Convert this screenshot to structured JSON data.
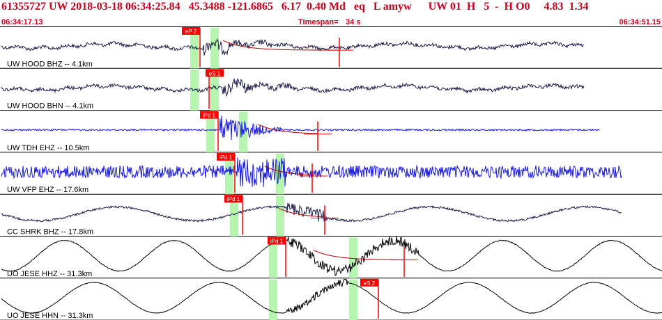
{
  "header": {
    "title": "61355727 UW 2018-03-18 06:34:25.84   45.3488 -121.6865   6.17  0.40 Md   eq   L amyw      UW 01  H   5  -  H O0     4.83  1.34",
    "start_time": "06:34:17.13",
    "end_time": "06:34:51.15",
    "timespan_label": "Timespan=",
    "timespan_value": "34 s"
  },
  "colors": {
    "header_text": "#c8001e",
    "pick_box": "#ff0000",
    "green_band": "#b6f5b0",
    "trace_dark": "#1a1a4a",
    "trace_blue": "#1818e0",
    "trace_black": "#000000",
    "coda_line": "#b00000"
  },
  "traces": [
    {
      "label": "UW HOOD BHZ -- 4.1km",
      "pick": "eP 2",
      "color": "trace_dark"
    },
    {
      "label": "UW HOOD BHN -- 4.1km",
      "pick": "eS 1",
      "color": "trace_dark"
    },
    {
      "label": "UW TDH EHZ -- 10.5km",
      "pick": "iPd 1",
      "color": "trace_blue"
    },
    {
      "label": "UW VFP EHZ -- 17.6km",
      "pick": "iPd 1",
      "color": "trace_blue"
    },
    {
      "label": "CC SHRK BHZ -- 17.8km",
      "pick": "iPd 1",
      "color": "trace_dark"
    },
    {
      "label": "UO JESE HHZ -- 31.3km",
      "pick": "iPd 1",
      "color": "trace_black"
    },
    {
      "label": "UO JESE HHN -- 31.3km",
      "pick": "eS 2",
      "color": "trace_black"
    }
  ]
}
